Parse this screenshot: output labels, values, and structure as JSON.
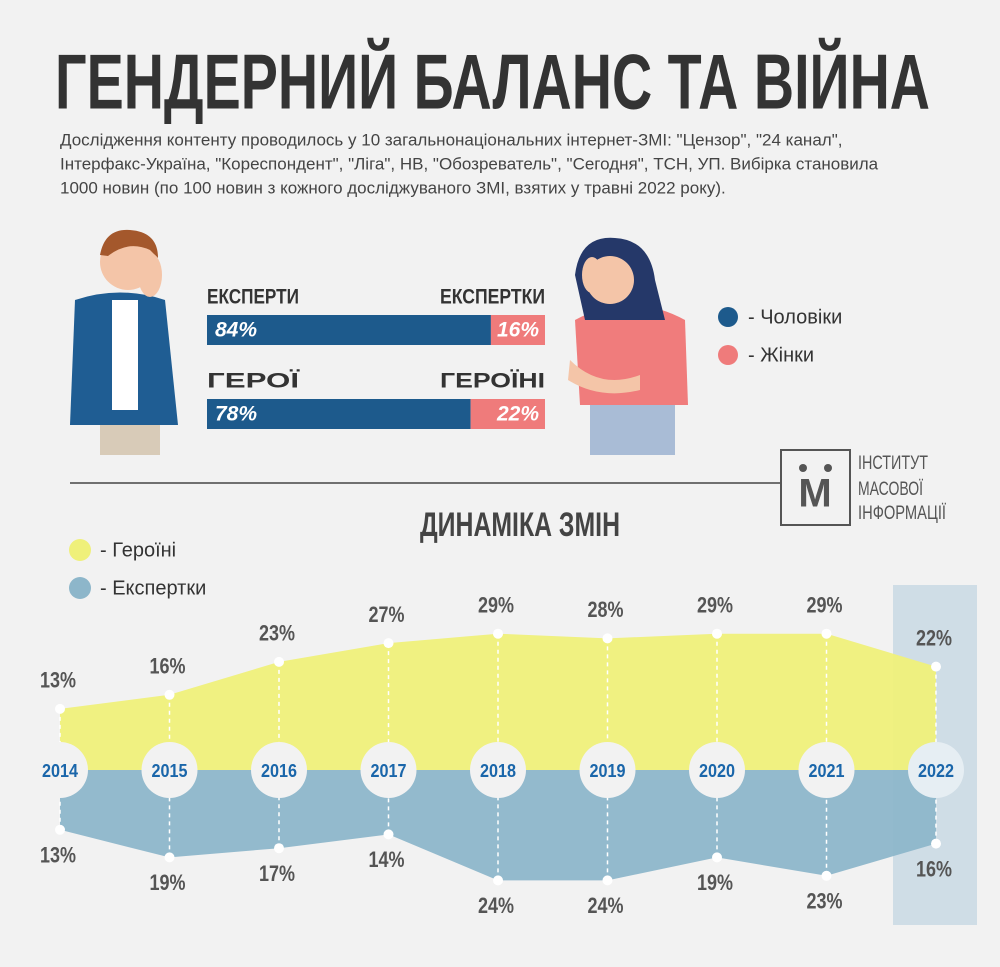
{
  "title": "ГЕНДЕРНИЙ БАЛАНС ТА ВІЙНА",
  "subtitle": [
    "Дослідження контенту проводилось у 10 загальнонаціональних інтернет-ЗМІ: \"Цензор\", \"24 канал\",",
    "Інтерфакс-Україна, \"Кореспондент\", \"Ліга\", НВ, \"Обозреватель\", \"Сегодня\", ТСН, УП. Вибірка становила",
    "1000 новин (по 100 новин з кожного досліджуваного ЗМІ, взятих у травні 2022 року)."
  ],
  "logo": {
    "mark": "М",
    "lines": [
      "ІНСТИТУТ",
      "МАСОВОЇ",
      "ІНФОРМАЦІЇ"
    ]
  },
  "chart_data": [
    {
      "type": "stacked-bar",
      "xlim": [
        0,
        100
      ],
      "series": [
        {
          "name": "- Чоловіки",
          "color": "#1d5a8c",
          "labels": [
            "ЕКСПЕРТИ",
            "ГЕРОЇ"
          ],
          "values": [
            84,
            78
          ],
          "value_labels": [
            "84%",
            "78%"
          ]
        },
        {
          "name": "- Жінки",
          "color": "#ef7b7b",
          "labels": [
            "ЕКСПЕРТКИ",
            "ГЕРОЇНІ"
          ],
          "values": [
            16,
            22
          ],
          "value_labels": [
            "16%",
            "22%"
          ]
        }
      ]
    },
    {
      "type": "mirrored-area",
      "title": "ДИНАМІКА ЗМІН",
      "categories": [
        "2014",
        "2015",
        "2016",
        "2017",
        "2018",
        "2019",
        "2020",
        "2021",
        "2022"
      ],
      "highlight": "2022",
      "series": [
        {
          "name": "- Героїні",
          "color": "#eff07a",
          "values": [
            13,
            16,
            23,
            27,
            29,
            28,
            29,
            29,
            22
          ],
          "value_labels": [
            "13%",
            "16%",
            "23%",
            "27%",
            "29%",
            "28%",
            "29%",
            "29%",
            "22%"
          ]
        },
        {
          "name": "- Експертки",
          "color": "#8db6ca",
          "values": [
            13,
            19,
            17,
            14,
            24,
            24,
            19,
            23,
            16
          ],
          "value_labels": [
            "13%",
            "19%",
            "17%",
            "14%",
            "24%",
            "24%",
            "19%",
            "23%",
            "16%"
          ]
        }
      ]
    }
  ]
}
